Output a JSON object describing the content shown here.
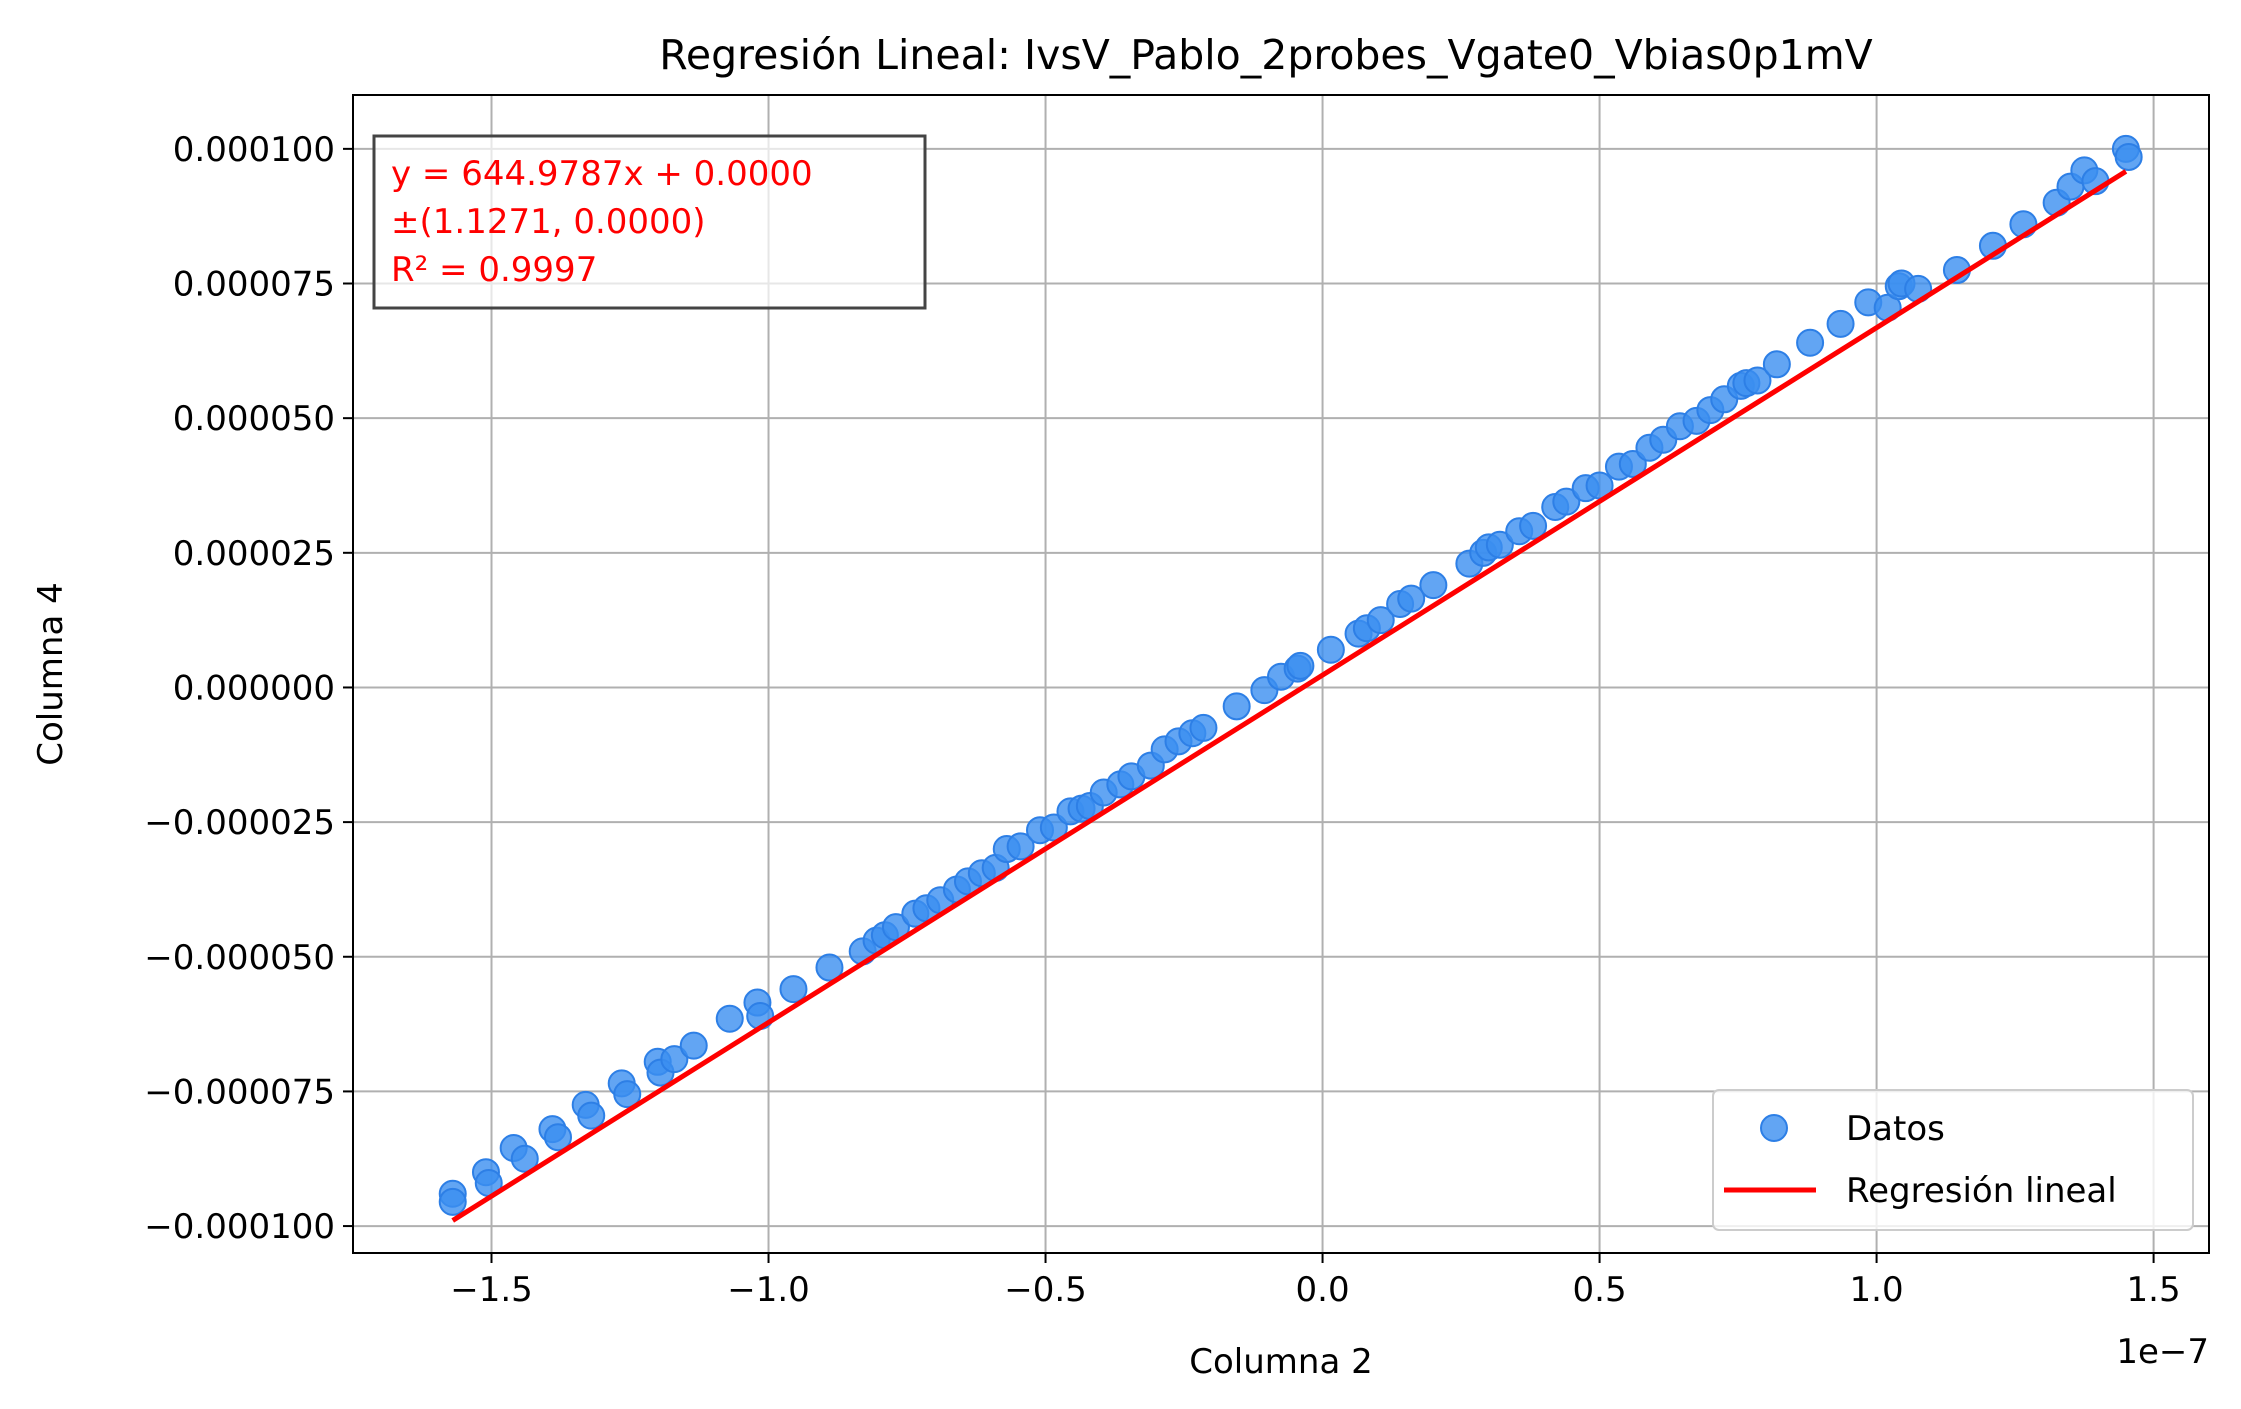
{
  "chart_data": {
    "type": "scatter",
    "title": "Regresión Lineal: IvsV_Pablo_2probes_Vgate0_Vbias0p1mV",
    "xlabel": "Columna 2",
    "ylabel": "Columna 4",
    "x_offset_label": "1e−7",
    "xlim": [
      -1.75e-07,
      1.6e-07
    ],
    "ylim": [
      -0.000105,
      0.00011
    ],
    "grid": true,
    "x_ticks": [
      -1.5e-07,
      -1e-07,
      -5e-08,
      0.0,
      5e-08,
      1e-07,
      1.5e-07
    ],
    "x_tick_labels": [
      "−1.5",
      "−1.0",
      "−0.5",
      "0.0",
      "0.5",
      "1.0",
      "1.5"
    ],
    "y_ticks": [
      0.0001,
      7.5e-05,
      5e-05,
      2.5e-05,
      0.0,
      -2.5e-05,
      -5e-05,
      -7.5e-05,
      -0.0001
    ],
    "y_tick_labels": [
      "0.000100",
      "0.000075",
      "0.000050",
      "0.000025",
      "0.000000",
      "−0.000025",
      "−0.000050",
      "−0.000075",
      "−0.000100"
    ],
    "colors": {
      "points": "#3b8ff0",
      "points_edge": "#2d7fe6",
      "line": "#ff0000",
      "stats_text": "#ff0000",
      "grid": "#b0b0b0"
    },
    "stats_box": {
      "lines": [
        "y = 644.9787x + 0.0000",
        "±(1.1271, 0.0000)",
        "R² = 0.9997"
      ],
      "placement": "upper-left"
    },
    "legend": {
      "placement": "lower-right",
      "entries": [
        {
          "label": "Datos",
          "kind": "marker"
        },
        {
          "label": "Regresión lineal",
          "kind": "line"
        }
      ]
    },
    "regression": {
      "slope": 644.9787,
      "intercept": 2.3e-06,
      "x_range": [
        -1.57e-07,
        1.45e-07
      ]
    },
    "series": [
      {
        "name": "Datos",
        "points": [
          [
            -1.57e-07,
            -9.4e-05
          ],
          [
            -1.57e-07,
            -9.55e-05
          ],
          [
            -1.51e-07,
            -9e-05
          ],
          [
            -1.505e-07,
            -9.2e-05
          ],
          [
            -1.46e-07,
            -8.55e-05
          ],
          [
            -1.44e-07,
            -8.75e-05
          ],
          [
            -1.39e-07,
            -8.2e-05
          ],
          [
            -1.38e-07,
            -8.35e-05
          ],
          [
            -1.33e-07,
            -7.75e-05
          ],
          [
            -1.32e-07,
            -7.95e-05
          ],
          [
            -1.265e-07,
            -7.35e-05
          ],
          [
            -1.255e-07,
            -7.55e-05
          ],
          [
            -1.2e-07,
            -6.95e-05
          ],
          [
            -1.195e-07,
            -7.15e-05
          ],
          [
            -1.17e-07,
            -6.9e-05
          ],
          [
            -1.135e-07,
            -6.65e-05
          ],
          [
            -1.07e-07,
            -6.15e-05
          ],
          [
            -1.02e-07,
            -5.85e-05
          ],
          [
            -1.015e-07,
            -6.1e-05
          ],
          [
            -9.55e-08,
            -5.6e-05
          ],
          [
            -8.9e-08,
            -5.2e-05
          ],
          [
            -8.3e-08,
            -4.9e-05
          ],
          [
            -8.05e-08,
            -4.7e-05
          ],
          [
            -7.9e-08,
            -4.6e-05
          ],
          [
            -7.7e-08,
            -4.45e-05
          ],
          [
            -7.35e-08,
            -4.2e-05
          ],
          [
            -7.15e-08,
            -4.1e-05
          ],
          [
            -6.9e-08,
            -3.95e-05
          ],
          [
            -6.6e-08,
            -3.75e-05
          ],
          [
            -6.4e-08,
            -3.6e-05
          ],
          [
            -6.15e-08,
            -3.45e-05
          ],
          [
            -5.9e-08,
            -3.35e-05
          ],
          [
            -5.7e-08,
            -3e-05
          ],
          [
            -5.45e-08,
            -2.95e-05
          ],
          [
            -5.1e-08,
            -2.65e-05
          ],
          [
            -4.85e-08,
            -2.6e-05
          ],
          [
            -4.55e-08,
            -2.3e-05
          ],
          [
            -4.35e-08,
            -2.25e-05
          ],
          [
            -4.2e-08,
            -2.2e-05
          ],
          [
            -3.95e-08,
            -1.95e-05
          ],
          [
            -3.65e-08,
            -1.8e-05
          ],
          [
            -3.45e-08,
            -1.65e-05
          ],
          [
            -3.1e-08,
            -1.45e-05
          ],
          [
            -2.85e-08,
            -1.15e-05
          ],
          [
            -2.6e-08,
            -1e-05
          ],
          [
            -2.35e-08,
            -8.5e-06
          ],
          [
            -2.15e-08,
            -7.5e-06
          ],
          [
            -1.55e-08,
            -3.5e-06
          ],
          [
            -1.05e-08,
            -5e-07
          ],
          [
            -7.5e-09,
            2e-06
          ],
          [
            -4.5e-09,
            3.5e-06
          ],
          [
            -4e-09,
            4e-06
          ],
          [
            1.5e-09,
            7e-06
          ],
          [
            6.5e-09,
            1e-05
          ],
          [
            8e-09,
            1.1e-05
          ],
          [
            1.05e-08,
            1.25e-05
          ],
          [
            1.4e-08,
            1.55e-05
          ],
          [
            1.6e-08,
            1.65e-05
          ],
          [
            2e-08,
            1.9e-05
          ],
          [
            2.65e-08,
            2.3e-05
          ],
          [
            2.9e-08,
            2.5e-05
          ],
          [
            3e-08,
            2.6e-05
          ],
          [
            3.2e-08,
            2.65e-05
          ],
          [
            3.55e-08,
            2.9e-05
          ],
          [
            3.8e-08,
            3e-05
          ],
          [
            4.2e-08,
            3.35e-05
          ],
          [
            4.4e-08,
            3.45e-05
          ],
          [
            4.75e-08,
            3.7e-05
          ],
          [
            5e-08,
            3.75e-05
          ],
          [
            5.35e-08,
            4.1e-05
          ],
          [
            5.6e-08,
            4.15e-05
          ],
          [
            5.9e-08,
            4.45e-05
          ],
          [
            6.15e-08,
            4.6e-05
          ],
          [
            6.45e-08,
            4.85e-05
          ],
          [
            6.75e-08,
            4.95e-05
          ],
          [
            7e-08,
            5.15e-05
          ],
          [
            7.25e-08,
            5.35e-05
          ],
          [
            7.55e-08,
            5.6e-05
          ],
          [
            7.65e-08,
            5.65e-05
          ],
          [
            7.85e-08,
            5.7e-05
          ],
          [
            8.2e-08,
            6e-05
          ],
          [
            8.8e-08,
            6.4e-05
          ],
          [
            9.35e-08,
            6.75e-05
          ],
          [
            9.85e-08,
            7.15e-05
          ],
          [
            1.02e-07,
            7.05e-05
          ],
          [
            1.04e-07,
            7.45e-05
          ],
          [
            1.045e-07,
            7.5e-05
          ],
          [
            1.075e-07,
            7.4e-05
          ],
          [
            1.145e-07,
            7.75e-05
          ],
          [
            1.21e-07,
            8.2e-05
          ],
          [
            1.265e-07,
            8.6e-05
          ],
          [
            1.325e-07,
            9e-05
          ],
          [
            1.35e-07,
            9.3e-05
          ],
          [
            1.375e-07,
            9.6e-05
          ],
          [
            1.395e-07,
            9.4e-05
          ],
          [
            1.45e-07,
            0.0001
          ],
          [
            1.455e-07,
            9.85e-05
          ]
        ]
      },
      {
        "name": "Regresión lineal",
        "kind": "line"
      }
    ]
  }
}
